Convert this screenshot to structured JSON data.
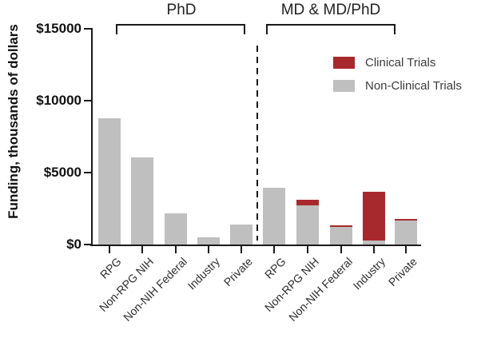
{
  "figure": {
    "y_axis_label": "Funding, thousands of dollars",
    "group_labels": [
      "PhD",
      "MD & MD/PhD"
    ],
    "legend": [
      {
        "label": "Clinical Trials",
        "color": "#a8292d"
      },
      {
        "label": "Non-Clinical Trials",
        "color": "#bfbfbf"
      }
    ],
    "colors": {
      "clinical": "#a8292d",
      "non_clinical": "#bfbfbf",
      "axis_ink": "#1a1a1a"
    }
  },
  "chart_data": {
    "type": "bar",
    "stacked": true,
    "title": "",
    "xlabel": "",
    "ylabel": "Funding, thousands of dollars",
    "ylim": [
      0,
      15000
    ],
    "yticks": [
      0,
      5000,
      10000,
      15000
    ],
    "ytick_labels": [
      "$0",
      "$5000",
      "$10000",
      "$15000"
    ],
    "legend_position": "upper right",
    "grid": false,
    "separator_note": "vertical dashed line divides PhD group from MD & MD/PhD group",
    "groups": [
      {
        "name": "PhD",
        "categories": [
          "RPG",
          "Non-RPG NIH",
          "Non-NIH Federal",
          "Industry",
          "Private"
        ],
        "series": [
          {
            "name": "Non-Clinical Trials",
            "color": "#bfbfbf",
            "values": [
              8800,
              6050,
              2150,
              500,
              1400
            ]
          },
          {
            "name": "Clinical Trials",
            "color": "#a8292d",
            "values": [
              0,
              0,
              0,
              0,
              0
            ]
          }
        ]
      },
      {
        "name": "MD & MD/PhD",
        "categories": [
          "RPG",
          "Non-RPG NIH",
          "Non-NIH Federal",
          "Industry",
          "Private"
        ],
        "series": [
          {
            "name": "Non-Clinical Trials",
            "color": "#bfbfbf",
            "values": [
              3950,
              2750,
              1200,
              250,
              1650
            ]
          },
          {
            "name": "Clinical Trials",
            "color": "#a8292d",
            "values": [
              0,
              400,
              100,
              3400,
              100
            ]
          }
        ]
      }
    ]
  }
}
